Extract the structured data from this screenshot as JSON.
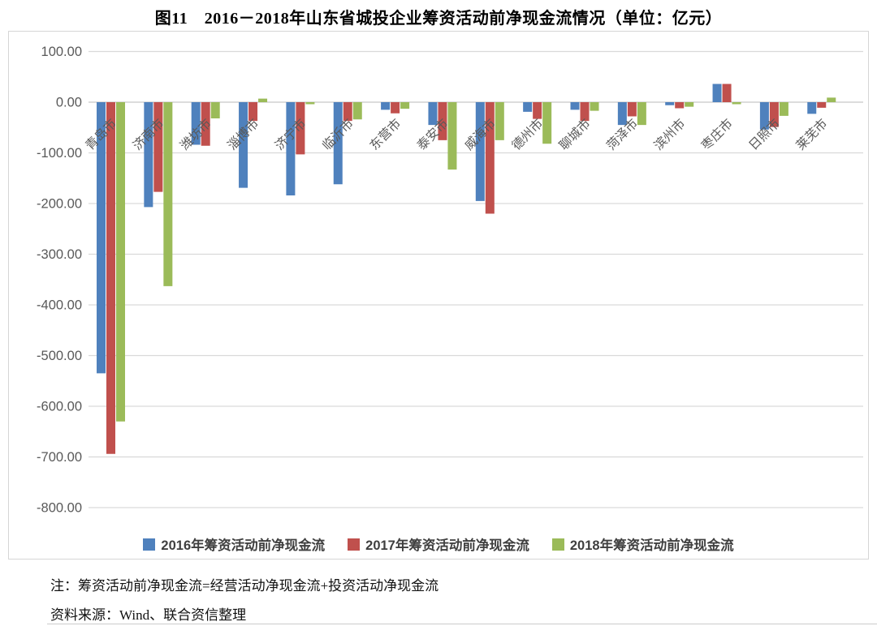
{
  "page": {
    "title": "图11　2016－2018年山东省城投企业筹资活动前净现金流情况（单位：亿元）",
    "note_definition": "注：筹资活动前净现金流=经营活动净现金流+投资活动净现金流",
    "note_source": "资料来源：Wind、联合资信整理"
  },
  "colors": {
    "series_2016": "#4F81BD",
    "series_2017": "#C0504D",
    "series_2018": "#9BBB59",
    "gridline": "#D9D9D9",
    "zero_line": "#C6C6C6",
    "axis_text": "#595959",
    "legend_text": "#3f3f3f"
  },
  "chart_data": {
    "type": "bar",
    "title": "图11　2016－2018年山东省城投企业筹资活动前净现金流情况（单位：亿元）",
    "xlabel": "",
    "ylabel": "",
    "unit": "亿元",
    "ylim": [
      -800,
      100
    ],
    "ytick_interval": 100,
    "yticks": [
      100,
      0,
      -100,
      -200,
      -300,
      -400,
      -500,
      -600,
      -700,
      -800
    ],
    "ytick_labels": [
      "100.00",
      "0.00",
      "-100.00",
      "-200.00",
      "-300.00",
      "-400.00",
      "-500.00",
      "-600.00",
      "-700.00",
      "-800.00"
    ],
    "grid": true,
    "legend_position": "bottom",
    "categories": [
      "青岛市",
      "济南市",
      "潍坊市",
      "淄博市",
      "济宁市",
      "临沂市",
      "东营市",
      "泰安市",
      "威海市",
      "德州市",
      "聊城市",
      "菏泽市",
      "滨州市",
      "枣庄市",
      "日照市",
      "莱芜市"
    ],
    "series": [
      {
        "name": "2016年筹资活动前净现金流",
        "color": "#4F81BD",
        "values": [
          -535,
          -207,
          -84,
          -169,
          -184,
          -162,
          -15,
          -45,
          -195,
          -19,
          -15,
          -45,
          -6,
          36,
          -54,
          -23
        ]
      },
      {
        "name": "2017年筹资活动前净现金流",
        "color": "#C0504D",
        "values": [
          -694,
          -177,
          -86,
          -37,
          -103,
          -37,
          -22,
          -75,
          -220,
          -33,
          -37,
          -28,
          -12,
          36,
          -49,
          -11
        ]
      },
      {
        "name": "2018年筹资活动前净现金流",
        "color": "#9BBB59",
        "values": [
          -630,
          -363,
          -32,
          7,
          -4,
          -34,
          -13,
          -133,
          -75,
          -82,
          -17,
          -45,
          -9,
          -4,
          -27,
          9
        ]
      }
    ]
  }
}
